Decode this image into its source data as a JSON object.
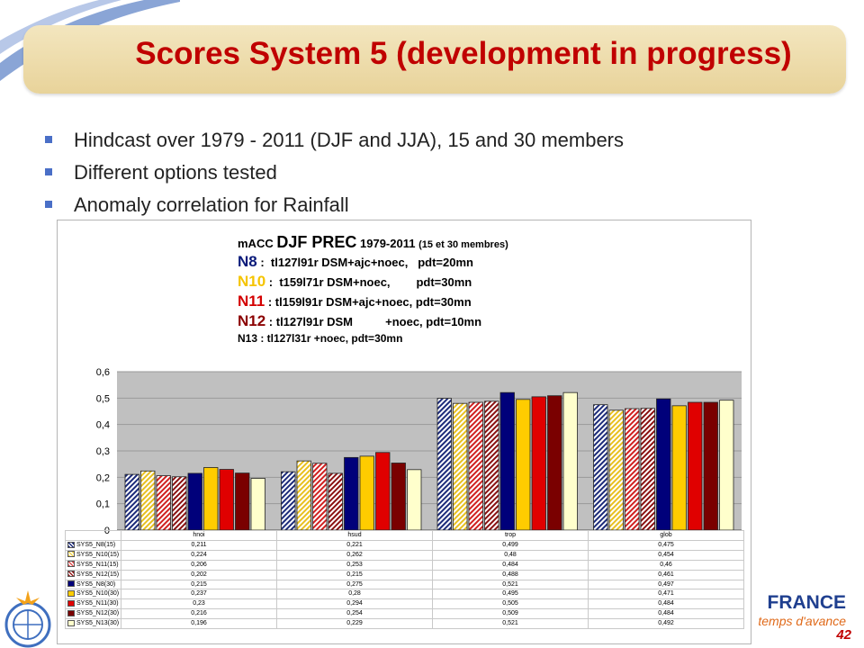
{
  "slide": {
    "title": "Scores System 5 (development in progress)",
    "page_number": "42",
    "bullets": [
      "Hindcast over 1979 - 2011 (DJF and JJA), 15 and 30 members",
      "Different options tested",
      "Anomaly correlation for Rainfall"
    ],
    "logo_text": "FRANCE",
    "logo_slogan": "temps d'avance"
  },
  "legend_block": {
    "line1_a": "mACC",
    "line1_b": "DJF PREC",
    "line1_c": "1979-2011",
    "line1_d": "(15 et 30 membres)",
    "rows": [
      {
        "tag": "N8",
        "text": " :  tl127l91r DSM+ajc+noec,   pdt=20mn",
        "color": "#0a1a7a"
      },
      {
        "tag": "N10",
        "text": " :  t159l71r DSM+noec,        pdt=30mn",
        "color": "#f5c400"
      },
      {
        "tag": "N11",
        "text": " : tl159l91r DSM+ajc+noec, pdt=30mn",
        "color": "#d40000"
      },
      {
        "tag": "N12",
        "text": " : tl127l91r DSM          +noec, pdt=10mn",
        "color": "#8b0000"
      }
    ],
    "last_row": "N13 : tl127l31r                  +noec, pdt=30mn"
  },
  "chart_data": {
    "type": "bar",
    "categories": [
      "hnoi",
      "hsud",
      "trop",
      "glob"
    ],
    "ylim": [
      0,
      0.6
    ],
    "yticks": [
      "0",
      "0,1",
      "0,2",
      "0,3",
      "0,4",
      "0,5",
      "0,6"
    ],
    "series": [
      {
        "name": "SYS5_N8(15)",
        "values": [
          0.211,
          0.221,
          0.499,
          0.475
        ],
        "color": "#1c2b7a",
        "pattern": "hatch-blue"
      },
      {
        "name": "SYS5_N10(15)",
        "values": [
          0.224,
          0.262,
          0.48,
          0.454
        ],
        "color": "#f2d24b",
        "pattern": "hatch-yellow"
      },
      {
        "name": "SYS5_N11(15)",
        "values": [
          0.206,
          0.253,
          0.484,
          0.46
        ],
        "color": "#e05050",
        "pattern": "hatch-red"
      },
      {
        "name": "SYS5_N12(15)",
        "values": [
          0.202,
          0.215,
          0.488,
          0.461
        ],
        "color": "#9a2020",
        "pattern": "hatch-darkred"
      },
      {
        "name": "SYS5_N8(30)",
        "values": [
          0.215,
          0.275,
          0.521,
          0.497
        ],
        "color": "#00007a",
        "pattern": "solid"
      },
      {
        "name": "SYS5_N10(30)",
        "values": [
          0.237,
          0.28,
          0.495,
          0.471
        ],
        "color": "#ffcc00",
        "pattern": "solid"
      },
      {
        "name": "SYS5_N11(30)",
        "values": [
          0.23,
          0.294,
          0.505,
          0.484
        ],
        "color": "#e00000",
        "pattern": "solid"
      },
      {
        "name": "SYS5_N12(30)",
        "values": [
          0.216,
          0.254,
          0.509,
          0.484
        ],
        "color": "#7a0000",
        "pattern": "solid"
      },
      {
        "name": "SYS5_N13(30)",
        "values": [
          0.196,
          0.229,
          0.521,
          0.492
        ],
        "color": "#ffffcc",
        "pattern": "solid"
      }
    ],
    "table_values": [
      [
        "0,211",
        "0,221",
        "0,499",
        "0,475"
      ],
      [
        "0,224",
        "0,262",
        "0,48",
        "0,454"
      ],
      [
        "0,206",
        "0,253",
        "0,484",
        "0,46"
      ],
      [
        "0,202",
        "0,215",
        "0,488",
        "0,461"
      ],
      [
        "0,215",
        "0,275",
        "0,521",
        "0,497"
      ],
      [
        "0,237",
        "0,28",
        "0,495",
        "0,471"
      ],
      [
        "0,23",
        "0,294",
        "0,505",
        "0,484"
      ],
      [
        "0,216",
        "0,254",
        "0,509",
        "0,484"
      ],
      [
        "0,196",
        "0,229",
        "0,521",
        "0,492"
      ]
    ],
    "grid": true,
    "legend_placement": "data-table-below"
  }
}
